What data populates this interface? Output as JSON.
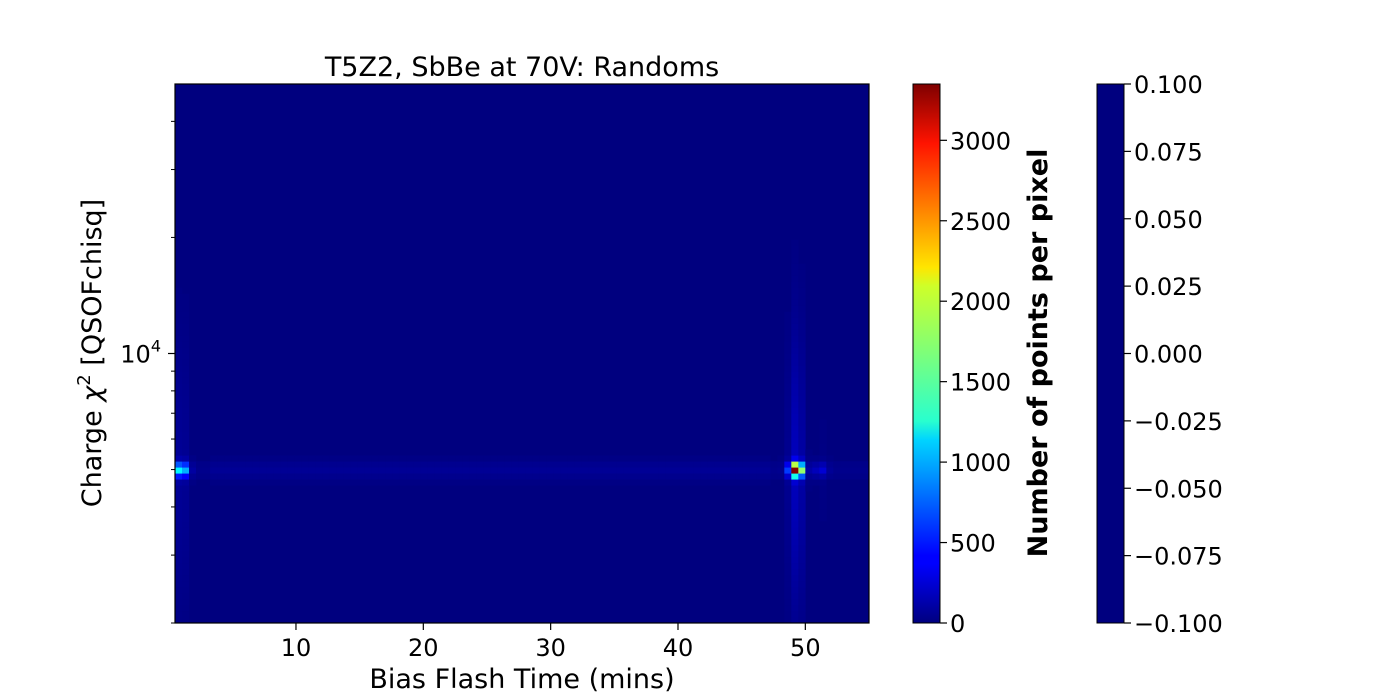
{
  "chart_data": {
    "type": "heatmap",
    "title": "T5Z2, SbBe at 70V: Randoms",
    "xlabel": "Bias Flash Time (mins)",
    "ylabel_prefix": "Charge ",
    "ylabel_symbol": "χ",
    "ylabel_power": "2",
    "ylabel_suffix": " [QSOFchisq]",
    "xlim": [
      0.5,
      55
    ],
    "x_ticks": [
      10,
      20,
      30,
      40,
      50
    ],
    "y_scale": "log",
    "ylim": [
      2000,
      50000
    ],
    "y_major_tick": {
      "base": "10",
      "exponent": "4",
      "value": 10000
    },
    "y_minor_ticks": [
      2000,
      3000,
      4000,
      5000,
      6000,
      7000,
      8000,
      9000,
      20000,
      30000,
      40000
    ],
    "background_color": "#00007f",
    "colormap": "jet",
    "hotspots": [
      {
        "x": 1.0,
        "y": 5000,
        "peak": 1400
      },
      {
        "x": 49.3,
        "y": 5000,
        "peak": 3350
      },
      {
        "x": 51.2,
        "y": 5000,
        "peak": 250
      }
    ],
    "band": {
      "y": 5000,
      "level": 70
    },
    "colorbar1": {
      "label": "Number of points per pixel",
      "min": 0,
      "max": 3350,
      "ticks": [
        "0",
        "500",
        "1000",
        "1500",
        "2000",
        "2500",
        "3000"
      ],
      "tick_values": [
        0,
        500,
        1000,
        1500,
        2000,
        2500,
        3000
      ]
    },
    "colorbar2": {
      "min": -0.1,
      "max": 0.1,
      "color": "#00007f",
      "ticks": [
        "−0.100",
        "−0.075",
        "−0.050",
        "−0.025",
        "0.000",
        "0.025",
        "0.050",
        "0.075",
        "0.100"
      ],
      "tick_values": [
        -0.1,
        -0.075,
        -0.05,
        -0.025,
        0.0,
        0.025,
        0.05,
        0.075,
        0.1
      ]
    }
  }
}
